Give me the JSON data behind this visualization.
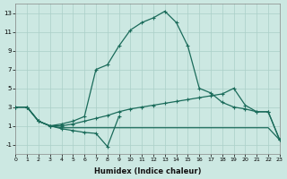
{
  "xlabel": "Humidex (Indice chaleur)",
  "background_color": "#cce8e2",
  "grid_color": "#aacfc8",
  "line_color": "#1a6b5a",
  "xlim": [
    0,
    23
  ],
  "ylim": [
    -2,
    14
  ],
  "yticks": [
    -1,
    1,
    3,
    5,
    7,
    9,
    11,
    13
  ],
  "xticks": [
    0,
    1,
    2,
    3,
    4,
    5,
    6,
    7,
    8,
    9,
    10,
    11,
    12,
    13,
    14,
    15,
    16,
    17,
    18,
    19,
    20,
    21,
    22,
    23
  ],
  "peak_x": [
    0,
    1,
    2,
    3,
    4,
    5,
    6,
    7,
    8,
    9,
    10,
    11,
    12,
    13,
    14,
    15,
    16,
    17,
    18,
    19,
    20,
    21,
    22,
    23
  ],
  "peak_y": [
    3,
    3,
    1.5,
    1,
    1.2,
    1.5,
    2.0,
    7.0,
    7.5,
    9.5,
    11.2,
    12.0,
    12.5,
    13.2,
    12.0,
    9.5,
    5.0,
    4.5,
    3.5,
    3.0,
    2.8,
    2.5,
    2.5,
    -0.5
  ],
  "upper_x": [
    0,
    1,
    2,
    3,
    4,
    5,
    6,
    7,
    8,
    9,
    10,
    11,
    12,
    13,
    14,
    15,
    16,
    17,
    18,
    19,
    20,
    21,
    22,
    23
  ],
  "upper_y": [
    3,
    3,
    1.5,
    1,
    1.0,
    1.2,
    1.5,
    1.8,
    2.1,
    2.5,
    2.8,
    3.0,
    3.2,
    3.4,
    3.6,
    3.8,
    4.0,
    4.2,
    4.4,
    5.0,
    3.2,
    2.5,
    2.5,
    -0.5
  ],
  "flat_x": [
    0,
    1,
    2,
    3,
    4,
    5,
    6,
    7,
    8,
    9,
    10,
    11,
    12,
    13,
    14,
    15,
    16,
    17,
    18,
    19,
    20,
    21,
    22,
    23
  ],
  "flat_y": [
    3,
    3,
    1.5,
    1,
    0.8,
    0.8,
    0.8,
    0.8,
    0.8,
    0.8,
    0.8,
    0.8,
    0.8,
    0.8,
    0.8,
    0.8,
    0.8,
    0.8,
    0.8,
    0.8,
    0.8,
    0.8,
    0.8,
    -0.5
  ],
  "dip_x": [
    0,
    1,
    2,
    3,
    4,
    5,
    6,
    7,
    8,
    9,
    10,
    11,
    12,
    13,
    14,
    15,
    16,
    17,
    18,
    19,
    20,
    21,
    22,
    23
  ],
  "dip_y": [
    3,
    3,
    1.5,
    1,
    0.7,
    0.5,
    0.3,
    0.2,
    -1.2,
    2.0,
    null,
    null,
    null,
    null,
    null,
    null,
    null,
    null,
    null,
    null,
    null,
    null,
    null,
    null
  ]
}
